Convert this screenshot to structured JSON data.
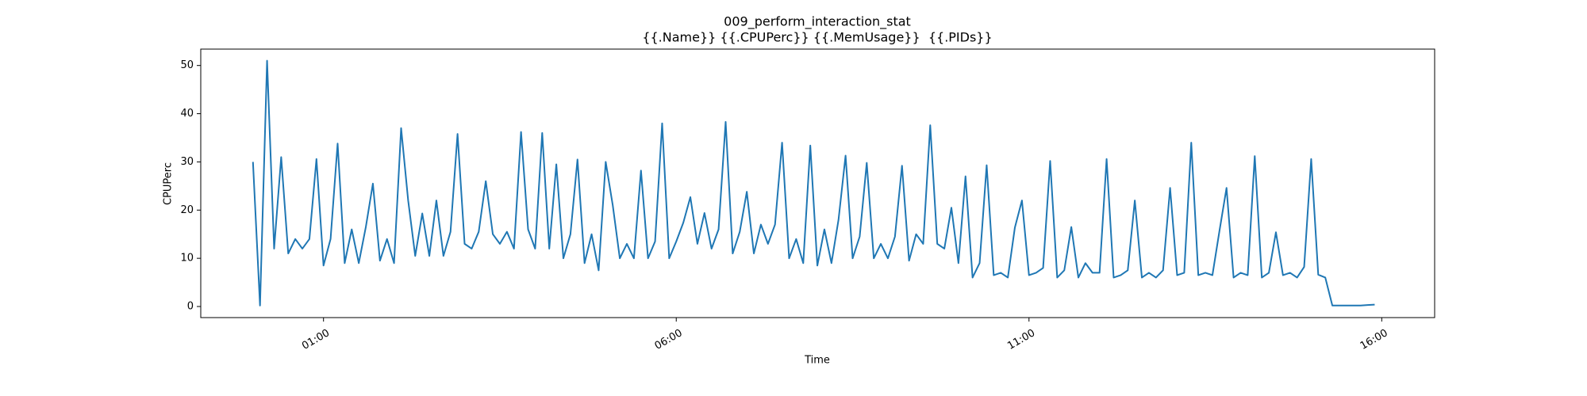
{
  "chart_data": {
    "type": "line",
    "title": "009_perform_interaction_stat",
    "subtitle": "{{.Name}} {{.CPUPerc}} {{.MemUsage}}  {{.PIDs}}",
    "x_label": "Time",
    "y_label": "CPUPerc",
    "color": "#1f77b4",
    "xlim": [
      -0.74,
      16.75
    ],
    "ylim": [
      -2.3,
      53.4
    ],
    "xticks": [
      {
        "value": 1,
        "label": "01:00"
      },
      {
        "value": 6,
        "label": "06:00"
      },
      {
        "value": 11,
        "label": "11:00"
      },
      {
        "value": 16,
        "label": "16:00"
      }
    ],
    "yticks": [
      0,
      10,
      20,
      30,
      40,
      50
    ],
    "x": [
      0,
      0.1,
      0.2,
      0.3,
      0.4,
      0.5,
      0.6,
      0.7,
      0.8,
      0.9,
      1,
      1.1,
      1.2,
      1.3,
      1.4,
      1.5,
      1.6,
      1.7,
      1.8,
      1.9,
      2,
      2.1,
      2.2,
      2.3,
      2.4,
      2.5,
      2.6,
      2.7,
      2.8,
      2.9,
      3,
      3.1,
      3.2,
      3.3,
      3.4,
      3.5,
      3.6,
      3.7,
      3.8,
      3.9,
      4,
      4.1,
      4.2,
      4.3,
      4.4,
      4.5,
      4.6,
      4.7,
      4.8,
      4.9,
      5,
      5.1,
      5.2,
      5.3,
      5.4,
      5.5,
      5.6,
      5.7,
      5.8,
      5.9,
      6,
      6.1,
      6.2,
      6.3,
      6.4,
      6.5,
      6.6,
      6.7,
      6.8,
      6.9,
      7,
      7.1,
      7.2,
      7.3,
      7.4,
      7.5,
      7.6,
      7.7,
      7.8,
      7.9,
      8,
      8.1,
      8.2,
      8.3,
      8.4,
      8.5,
      8.6,
      8.7,
      8.8,
      8.9,
      9,
      9.1,
      9.2,
      9.3,
      9.4,
      9.5,
      9.6,
      9.7,
      9.8,
      9.9,
      10,
      10.1,
      10.2,
      10.3,
      10.4,
      10.5,
      10.6,
      10.7,
      10.8,
      10.9,
      11,
      11.1,
      11.2,
      11.3,
      11.4,
      11.5,
      11.6,
      11.7,
      11.8,
      11.9,
      12,
      12.1,
      12.2,
      12.3,
      12.4,
      12.5,
      12.6,
      12.7,
      12.8,
      12.9,
      13,
      13.1,
      13.2,
      13.3,
      13.4,
      13.5,
      13.6,
      13.7,
      13.8,
      13.9,
      14,
      14.1,
      14.2,
      14.3,
      14.4,
      14.5,
      14.6,
      14.7,
      14.8,
      14.9,
      15,
      15.1,
      15.2,
      15.3,
      15.4,
      15.5,
      15.6,
      15.7,
      15.8,
      15.9
    ],
    "values": [
      30,
      0.2,
      51,
      12,
      31,
      11,
      14,
      12,
      14,
      30.6,
      8.5,
      14,
      33.8,
      9,
      16,
      9,
      16.5,
      25.5,
      9.5,
      14,
      9,
      37,
      22,
      10.5,
      19.3,
      10.5,
      22,
      10.5,
      15.5,
      35.8,
      13,
      12,
      15.5,
      26,
      15,
      13,
      15.5,
      12,
      36.2,
      16,
      12,
      36,
      12,
      29.5,
      10,
      15,
      30.5,
      9,
      15,
      7.5,
      30,
      21,
      10,
      13,
      10,
      28.2,
      10,
      13.5,
      38,
      10,
      13.5,
      17.4,
      22.7,
      13,
      19.4,
      12,
      16,
      38.3,
      11,
      15.5,
      23.8,
      11,
      17,
      13,
      17,
      34,
      10,
      14,
      9,
      33.4,
      8.5,
      16,
      9,
      18,
      31.3,
      10,
      14.5,
      29.8,
      10,
      13,
      10,
      14.5,
      29.2,
      9.5,
      15,
      13,
      37.6,
      13,
      12,
      20.5,
      9,
      27,
      6,
      9,
      29.3,
      6.5,
      7,
      6,
      16.4,
      22,
      6.5,
      7,
      8,
      30.2,
      6,
      7.5,
      16.5,
      6,
      9,
      7,
      7,
      30.6,
      6,
      6.5,
      7.5,
      22,
      6,
      7,
      6,
      7.5,
      24.6,
      6.5,
      7,
      34,
      6.5,
      7,
      6.5,
      15.7,
      24.6,
      6,
      7,
      6.5,
      31.2,
      6,
      7,
      15.4,
      6.5,
      7,
      6,
      8.2,
      30.6,
      6.6,
      6,
      0.2,
      0.2,
      0.2,
      0.2,
      0.2,
      0.3,
      0.4
    ]
  }
}
